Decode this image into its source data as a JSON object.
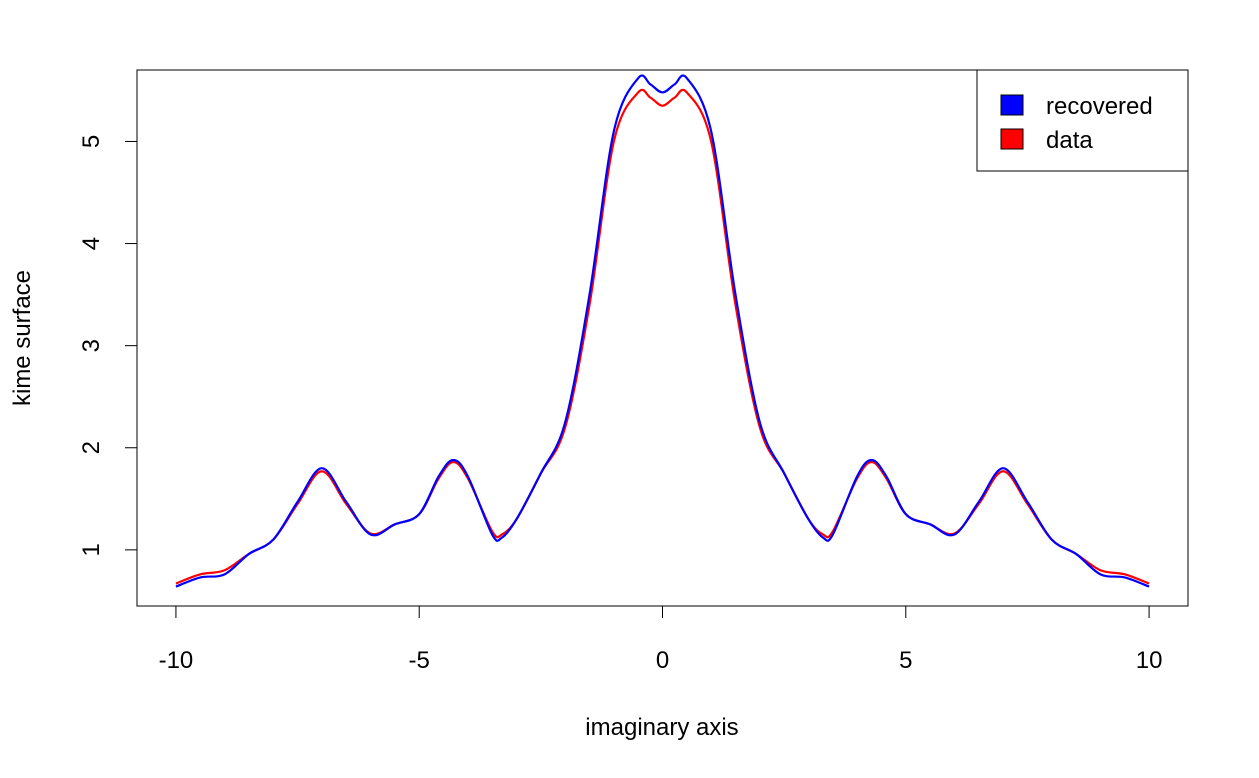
{
  "chart_data": {
    "type": "line",
    "title": "",
    "xlabel": "imaginary axis",
    "ylabel": "kime surface",
    "xlim": [
      -10.8,
      10.8
    ],
    "ylim": [
      0.45,
      5.7
    ],
    "x_ticks": [
      -10,
      -5,
      0,
      5,
      10
    ],
    "x_tick_labels": [
      "-10",
      "-5",
      "0",
      "5",
      "10"
    ],
    "y_ticks": [
      1,
      2,
      3,
      4,
      5
    ],
    "y_tick_labels": [
      "1",
      "2",
      "3",
      "4",
      "5"
    ],
    "grid": false,
    "legend": {
      "position": "top-right"
    },
    "series": [
      {
        "name": "data",
        "color": "#ff0000",
        "x": [
          -10,
          -9.5,
          -9,
          -8.5,
          -8,
          -7.5,
          -7,
          -6.5,
          -6,
          -5.5,
          -5,
          -4.6,
          -4.3,
          -4,
          -3.5,
          -3.3,
          -3,
          -2.5,
          -2,
          -1.5,
          -1,
          -0.5,
          -0.25,
          0,
          0.25,
          0.5,
          1,
          1.5,
          2,
          2.5,
          3,
          3.3,
          3.5,
          4,
          4.3,
          4.6,
          5,
          5.5,
          6,
          6.5,
          7,
          7.5,
          8,
          8.5,
          9,
          9.5,
          10
        ],
        "y": [
          0.67,
          0.76,
          0.8,
          0.96,
          1.1,
          1.45,
          1.77,
          1.45,
          1.16,
          1.25,
          1.35,
          1.7,
          1.86,
          1.7,
          1.18,
          1.15,
          1.3,
          1.75,
          2.2,
          3.4,
          5.0,
          5.48,
          5.43,
          5.35,
          5.43,
          5.48,
          5.0,
          3.4,
          2.2,
          1.75,
          1.3,
          1.15,
          1.18,
          1.7,
          1.86,
          1.7,
          1.35,
          1.25,
          1.16,
          1.45,
          1.77,
          1.45,
          1.1,
          0.96,
          0.8,
          0.76,
          0.67
        ]
      },
      {
        "name": "recovered",
        "color": "#0000ff",
        "x": [
          -10,
          -9.5,
          -9,
          -8.5,
          -8,
          -7.5,
          -7,
          -6.5,
          -6,
          -5.5,
          -5,
          -4.6,
          -4.3,
          -4,
          -3.5,
          -3.3,
          -3,
          -2.5,
          -2,
          -1.5,
          -1,
          -0.5,
          -0.25,
          0,
          0.25,
          0.5,
          1,
          1.5,
          2,
          2.5,
          3,
          3.3,
          3.5,
          4,
          4.3,
          4.6,
          5,
          5.5,
          6,
          6.5,
          7,
          7.5,
          8,
          8.5,
          9,
          9.5,
          10
        ],
        "y": [
          0.64,
          0.73,
          0.76,
          0.96,
          1.1,
          1.47,
          1.8,
          1.47,
          1.15,
          1.25,
          1.35,
          1.72,
          1.88,
          1.72,
          1.15,
          1.12,
          1.3,
          1.75,
          2.25,
          3.5,
          5.1,
          5.62,
          5.56,
          5.48,
          5.56,
          5.62,
          5.1,
          3.5,
          2.25,
          1.75,
          1.3,
          1.12,
          1.15,
          1.72,
          1.88,
          1.72,
          1.35,
          1.25,
          1.15,
          1.47,
          1.8,
          1.47,
          1.1,
          0.96,
          0.76,
          0.73,
          0.64
        ]
      }
    ],
    "legend_entries": [
      {
        "label": "recovered",
        "color": "#0000ff"
      },
      {
        "label": "data",
        "color": "#ff0000"
      }
    ]
  }
}
